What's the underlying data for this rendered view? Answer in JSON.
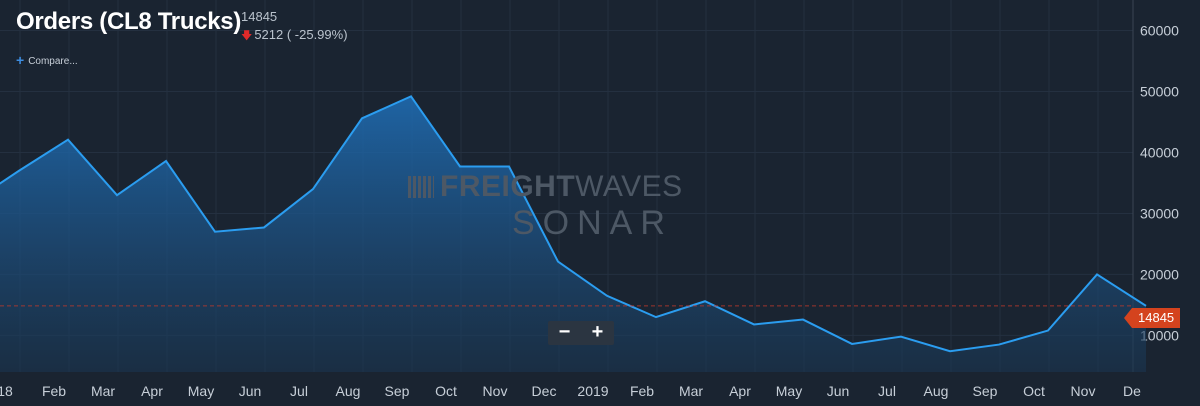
{
  "header": {
    "title": "Orders (CL8 Trucks)",
    "current_value": "14845",
    "change": "5212 ( -25.99%)",
    "compare_label": "Compare..."
  },
  "watermark": {
    "brand_bold": "FREIGHT",
    "brand_light": "WAVES",
    "sub": "SONAR"
  },
  "zoom": {
    "minus": "−",
    "plus": "+"
  },
  "value_badge": "14845",
  "colors": {
    "background": "#1a2431",
    "line": "#2b9df0",
    "badge": "#d4431e",
    "ref_line": "#c0392b",
    "down_arrow": "#e02a2a"
  },
  "chart_data": {
    "type": "area",
    "x_labels": [
      "18",
      "Feb",
      "Mar",
      "Apr",
      "May",
      "Jun",
      "Jul",
      "Aug",
      "Sep",
      "Oct",
      "Nov",
      "Dec",
      "2019",
      "Feb",
      "Mar",
      "Apr",
      "May",
      "Jun",
      "Jul",
      "Aug",
      "Sep",
      "Oct",
      "Nov",
      "De"
    ],
    "y_ticks": [
      10000,
      20000,
      30000,
      40000,
      50000,
      60000
    ],
    "ylim": [
      4000,
      65000
    ],
    "reference_line": 14845,
    "series": [
      {
        "values": [
          [
            "2017-12",
            37000
          ],
          [
            "2018-01",
            42100
          ],
          [
            "2018-02",
            33000
          ],
          [
            "2018-03",
            38600
          ],
          [
            "2018-04",
            27000
          ],
          [
            "2018-05",
            27700
          ],
          [
            "2018-06",
            34000
          ],
          [
            "2018-07",
            45600
          ],
          [
            "2018-08",
            49200
          ],
          [
            "2018-09",
            37700
          ],
          [
            "2018-10",
            37700
          ],
          [
            "2018-11",
            22100
          ],
          [
            "2018-12",
            16500
          ],
          [
            "2019-01",
            13000
          ],
          [
            "2019-02",
            15600
          ],
          [
            "2019-03",
            11800
          ],
          [
            "2019-04",
            12600
          ],
          [
            "2019-05",
            8600
          ],
          [
            "2019-06",
            9800
          ],
          [
            "2019-07",
            7400
          ],
          [
            "2019-08",
            8500
          ],
          [
            "2019-09",
            10800
          ],
          [
            "2019-10",
            20000
          ],
          [
            "2019-11",
            14845
          ]
        ]
      }
    ],
    "grid": true,
    "legend": "none"
  }
}
